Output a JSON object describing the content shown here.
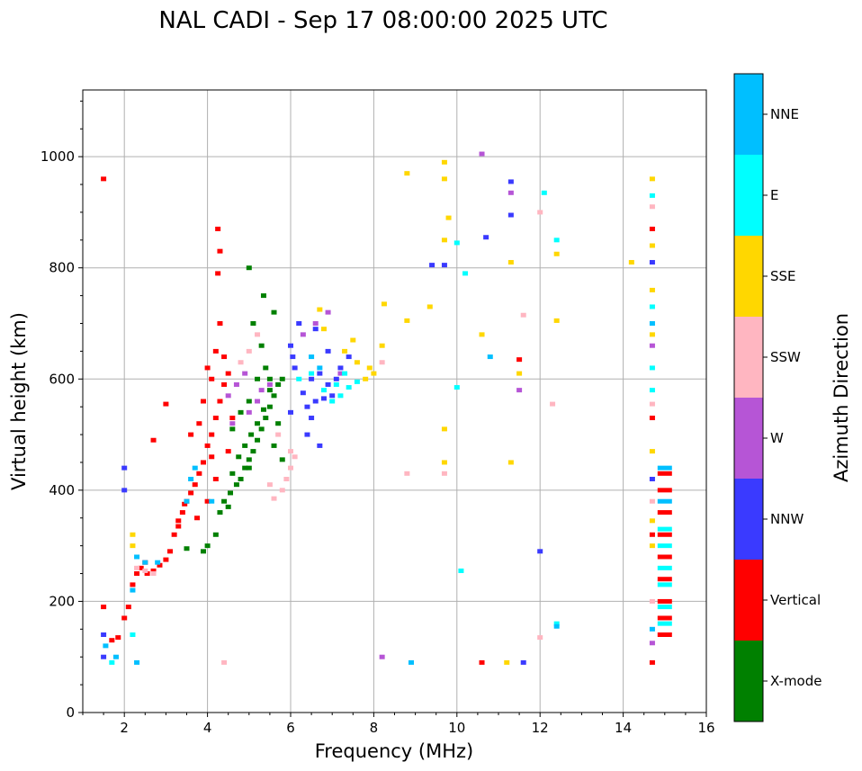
{
  "chart_data": {
    "type": "scatter",
    "title": "NAL CADI - Sep 17 08:00:00 2025 UTC",
    "xlabel": "Frequency (MHz)",
    "ylabel": "Virtual height (km)",
    "xlim": [
      1,
      16
    ],
    "ylim": [
      0,
      1120
    ],
    "xticks": [
      2,
      4,
      6,
      8,
      10,
      12,
      14,
      16
    ],
    "yticks": [
      0,
      200,
      400,
      600,
      800,
      1000
    ],
    "grid": true,
    "colorbar": {
      "label": "Azimuth Direction",
      "categories": [
        {
          "name": "X-mode",
          "color": "#008000"
        },
        {
          "name": "Vertical",
          "color": "#ff0000"
        },
        {
          "name": "NNW",
          "color": "#3a3aff"
        },
        {
          "name": "W",
          "color": "#b655d6"
        },
        {
          "name": "SSW",
          "color": "#ffb6c1"
        },
        {
          "name": "SSE",
          "color": "#ffd700"
        },
        {
          "name": "E",
          "color": "#00ffff"
        },
        {
          "name": "NNE",
          "color": "#00bfff"
        }
      ]
    },
    "series": [
      {
        "name": "X-mode",
        "points": [
          [
            4.4,
            380
          ],
          [
            4.55,
            395
          ],
          [
            4.7,
            410
          ],
          [
            4.8,
            420
          ],
          [
            4.9,
            440
          ],
          [
            5.0,
            455
          ],
          [
            5.1,
            470
          ],
          [
            5.2,
            490
          ],
          [
            5.3,
            510
          ],
          [
            5.4,
            530
          ],
          [
            5.5,
            550
          ],
          [
            5.6,
            570
          ],
          [
            5.7,
            590
          ],
          [
            5.8,
            600
          ],
          [
            4.6,
            430
          ],
          [
            4.75,
            460
          ],
          [
            4.9,
            480
          ],
          [
            5.05,
            500
          ],
          [
            5.2,
            520
          ],
          [
            5.35,
            545
          ],
          [
            5.5,
            580
          ],
          [
            5.0,
            560
          ],
          [
            5.2,
            600
          ],
          [
            5.4,
            620
          ],
          [
            4.8,
            540
          ],
          [
            5.3,
            660
          ],
          [
            5.1,
            700
          ],
          [
            4.2,
            320
          ],
          [
            4.0,
            300
          ],
          [
            3.9,
            290
          ],
          [
            3.5,
            295
          ],
          [
            4.3,
            360
          ],
          [
            4.5,
            370
          ],
          [
            5.6,
            480
          ],
          [
            5.7,
            520
          ],
          [
            5.8,
            455
          ],
          [
            5.0,
            800
          ],
          [
            5.35,
            750
          ],
          [
            5.6,
            720
          ],
          [
            5.0,
            440
          ],
          [
            5.5,
            600
          ],
          [
            4.6,
            510
          ]
        ]
      },
      {
        "name": "Vertical",
        "points": [
          [
            1.5,
            960
          ],
          [
            1.5,
            190
          ],
          [
            1.7,
            130
          ],
          [
            1.85,
            135
          ],
          [
            2.0,
            170
          ],
          [
            2.1,
            190
          ],
          [
            2.2,
            230
          ],
          [
            2.3,
            250
          ],
          [
            2.4,
            260
          ],
          [
            2.55,
            250
          ],
          [
            2.7,
            255
          ],
          [
            2.85,
            265
          ],
          [
            3.0,
            275
          ],
          [
            3.1,
            290
          ],
          [
            3.2,
            320
          ],
          [
            3.3,
            345
          ],
          [
            3.4,
            360
          ],
          [
            3.5,
            380
          ],
          [
            3.6,
            395
          ],
          [
            3.7,
            410
          ],
          [
            3.8,
            430
          ],
          [
            3.9,
            450
          ],
          [
            4.0,
            480
          ],
          [
            4.1,
            500
          ],
          [
            4.2,
            530
          ],
          [
            4.3,
            560
          ],
          [
            4.4,
            590
          ],
          [
            4.5,
            610
          ],
          [
            3.9,
            560
          ],
          [
            4.1,
            600
          ],
          [
            4.2,
            650
          ],
          [
            4.3,
            700
          ],
          [
            4.25,
            790
          ],
          [
            4.3,
            830
          ],
          [
            4.25,
            870
          ],
          [
            3.6,
            500
          ],
          [
            3.8,
            520
          ],
          [
            4.0,
            380
          ],
          [
            4.2,
            420
          ],
          [
            4.5,
            470
          ],
          [
            4.6,
            530
          ],
          [
            2.7,
            490
          ],
          [
            3.0,
            555
          ],
          [
            3.45,
            375
          ],
          [
            3.75,
            350
          ],
          [
            4.4,
            640
          ],
          [
            4.0,
            620
          ],
          [
            15.0,
            140
          ],
          [
            15.0,
            170
          ],
          [
            15.0,
            200
          ],
          [
            15.0,
            240
          ],
          [
            15.0,
            280
          ],
          [
            15.0,
            320
          ],
          [
            15.0,
            360
          ],
          [
            15.0,
            400
          ],
          [
            15.0,
            430
          ],
          [
            14.7,
            870
          ],
          [
            14.7,
            530
          ],
          [
            14.7,
            320
          ],
          [
            14.7,
            90
          ],
          [
            10.6,
            90
          ],
          [
            11.5,
            635
          ],
          [
            4.1,
            460
          ],
          [
            3.3,
            335
          ],
          [
            2.5,
            270
          ]
        ]
      },
      {
        "name": "NNW",
        "points": [
          [
            6.4,
            550
          ],
          [
            6.6,
            560
          ],
          [
            6.8,
            565
          ],
          [
            7.0,
            570
          ],
          [
            6.5,
            600
          ],
          [
            6.7,
            610
          ],
          [
            6.9,
            590
          ],
          [
            6.3,
            575
          ],
          [
            6.1,
            620
          ],
          [
            6.05,
            640
          ],
          [
            6.0,
            660
          ],
          [
            6.5,
            530
          ],
          [
            7.2,
            620
          ],
          [
            7.4,
            640
          ],
          [
            6.2,
            700
          ],
          [
            6.6,
            690
          ],
          [
            6.9,
            650
          ],
          [
            7.1,
            600
          ],
          [
            6.4,
            500
          ],
          [
            6.7,
            480
          ],
          [
            2.0,
            400
          ],
          [
            2.0,
            440
          ],
          [
            1.5,
            140
          ],
          [
            1.5,
            100
          ],
          [
            9.4,
            805
          ],
          [
            9.7,
            805
          ],
          [
            11.3,
            895
          ],
          [
            11.3,
            955
          ],
          [
            10.7,
            855
          ],
          [
            14.7,
            420
          ],
          [
            14.7,
            810
          ],
          [
            12.0,
            290
          ],
          [
            11.6,
            90
          ],
          [
            6.0,
            540
          ]
        ]
      },
      {
        "name": "W",
        "points": [
          [
            4.7,
            590
          ],
          [
            4.9,
            610
          ],
          [
            5.2,
            560
          ],
          [
            4.6,
            520
          ],
          [
            5.5,
            590
          ],
          [
            6.6,
            700
          ],
          [
            6.9,
            720
          ],
          [
            6.3,
            680
          ],
          [
            7.2,
            610
          ],
          [
            4.5,
            570
          ],
          [
            5.0,
            540
          ],
          [
            10.6,
            1005
          ],
          [
            11.3,
            935
          ],
          [
            8.2,
            100
          ],
          [
            14.7,
            660
          ],
          [
            14.7,
            125
          ],
          [
            11.5,
            580
          ],
          [
            5.3,
            580
          ]
        ]
      },
      {
        "name": "SSW",
        "points": [
          [
            2.3,
            260
          ],
          [
            2.5,
            255
          ],
          [
            2.7,
            250
          ],
          [
            5.6,
            385
          ],
          [
            5.8,
            400
          ],
          [
            5.9,
            420
          ],
          [
            6.0,
            440
          ],
          [
            6.1,
            460
          ],
          [
            5.7,
            500
          ],
          [
            6.0,
            470
          ],
          [
            4.8,
            630
          ],
          [
            5.0,
            650
          ],
          [
            5.2,
            680
          ],
          [
            8.2,
            630
          ],
          [
            8.8,
            430
          ],
          [
            9.7,
            430
          ],
          [
            12.3,
            555
          ],
          [
            11.6,
            715
          ],
          [
            12.0,
            900
          ],
          [
            14.7,
            910
          ],
          [
            14.7,
            555
          ],
          [
            14.7,
            380
          ],
          [
            4.4,
            90
          ],
          [
            12.0,
            135
          ],
          [
            14.7,
            200
          ],
          [
            5.5,
            410
          ]
        ]
      },
      {
        "name": "SSE",
        "points": [
          [
            7.8,
            600
          ],
          [
            7.9,
            620
          ],
          [
            8.0,
            610
          ],
          [
            7.6,
            630
          ],
          [
            7.3,
            650
          ],
          [
            7.5,
            670
          ],
          [
            6.8,
            690
          ],
          [
            6.7,
            725
          ],
          [
            8.2,
            660
          ],
          [
            8.25,
            735
          ],
          [
            8.8,
            970
          ],
          [
            8.8,
            705
          ],
          [
            9.7,
            990
          ],
          [
            9.7,
            960
          ],
          [
            9.35,
            730
          ],
          [
            9.7,
            510
          ],
          [
            9.7,
            450
          ],
          [
            10.6,
            680
          ],
          [
            11.3,
            810
          ],
          [
            12.4,
            825
          ],
          [
            12.4,
            705
          ],
          [
            14.2,
            810
          ],
          [
            14.7,
            960
          ],
          [
            14.7,
            840
          ],
          [
            14.7,
            760
          ],
          [
            14.7,
            680
          ],
          [
            14.7,
            470
          ],
          [
            14.7,
            345
          ],
          [
            14.7,
            300
          ],
          [
            2.2,
            320
          ],
          [
            2.2,
            300
          ],
          [
            11.5,
            610
          ],
          [
            11.2,
            90
          ],
          [
            11.3,
            450
          ],
          [
            9.7,
            850
          ],
          [
            9.8,
            890
          ]
        ]
      },
      {
        "name": "E",
        "points": [
          [
            7.0,
            560
          ],
          [
            7.2,
            570
          ],
          [
            7.4,
            585
          ],
          [
            7.6,
            595
          ],
          [
            7.1,
            590
          ],
          [
            6.8,
            580
          ],
          [
            6.5,
            610
          ],
          [
            6.2,
            600
          ],
          [
            7.3,
            610
          ],
          [
            10.0,
            845
          ],
          [
            10.0,
            585
          ],
          [
            10.1,
            255
          ],
          [
            12.1,
            935
          ],
          [
            12.4,
            850
          ],
          [
            12.4,
            160
          ],
          [
            14.7,
            930
          ],
          [
            14.7,
            730
          ],
          [
            14.7,
            620
          ],
          [
            14.7,
            580
          ],
          [
            15.0,
            260
          ],
          [
            15.0,
            300
          ],
          [
            15.0,
            330
          ],
          [
            15.0,
            230
          ],
          [
            15.0,
            190
          ],
          [
            15.0,
            160
          ],
          [
            1.7,
            90
          ],
          [
            2.2,
            140
          ],
          [
            10.2,
            790
          ]
        ]
      },
      {
        "name": "NNE",
        "points": [
          [
            2.2,
            220
          ],
          [
            2.3,
            280
          ],
          [
            2.5,
            270
          ],
          [
            2.8,
            270
          ],
          [
            3.5,
            380
          ],
          [
            3.6,
            420
          ],
          [
            3.7,
            440
          ],
          [
            4.1,
            380
          ],
          [
            6.5,
            640
          ],
          [
            6.7,
            620
          ],
          [
            14.7,
            150
          ],
          [
            14.7,
            700
          ],
          [
            12.4,
            155
          ],
          [
            10.8,
            640
          ],
          [
            1.55,
            120
          ],
          [
            1.8,
            100
          ],
          [
            2.3,
            90
          ],
          [
            8.9,
            90
          ],
          [
            15.0,
            440
          ],
          [
            15.0,
            380
          ]
        ]
      }
    ]
  }
}
